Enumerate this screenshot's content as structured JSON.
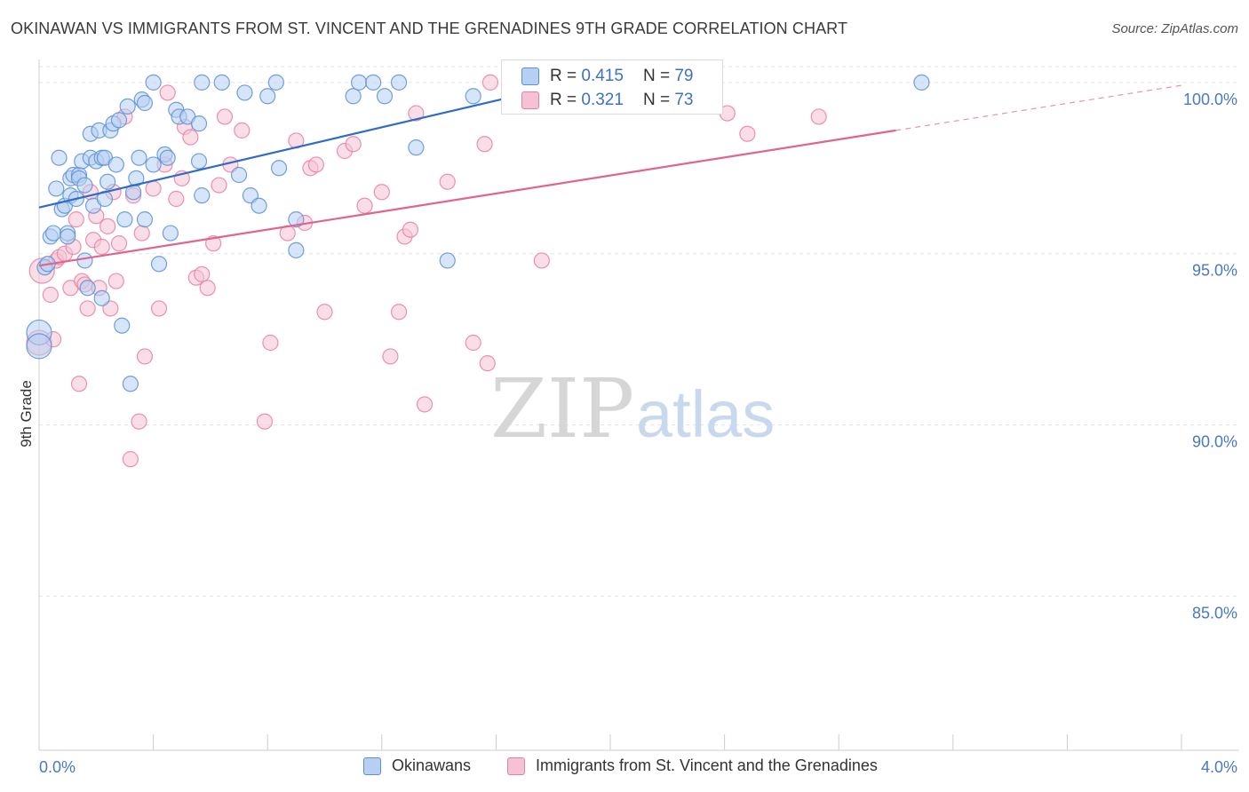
{
  "title": "OKINAWAN VS IMMIGRANTS FROM ST. VINCENT AND THE GRENADINES 9TH GRADE CORRELATION CHART",
  "source": "Source: ZipAtlas.com",
  "watermark": {
    "zip": "ZIP",
    "atlas": "atlas"
  },
  "colors": {
    "blue": "#5b8fd6",
    "blue_fill": "#b6cff2",
    "blue_line": "#2f6cc4",
    "pink": "#e97fa0",
    "pink_fill": "#f6c2d3",
    "pink_line": "#e0648c",
    "tick_label": "#4a78c2"
  },
  "legend": {
    "series": [
      {
        "name": "Okinawans",
        "r_label": "R =",
        "r_value": "0.415",
        "n_label": "N =",
        "n_value": "79"
      },
      {
        "name": "Immigrants from St. Vincent and the Grenadines",
        "r_label": "R =",
        "r_value": "0.321",
        "n_label": "N =",
        "n_value": "73"
      }
    ]
  },
  "chart_data": {
    "type": "scatter",
    "title": "OKINAWAN VS IMMIGRANTS FROM ST. VINCENT AND THE GRENADINES 9TH GRADE CORRELATION CHART",
    "xlabel": "",
    "ylabel": "9th Grade",
    "xlim": [
      0.0,
      4.0
    ],
    "ylim": [
      80.5,
      100.8
    ],
    "x_tick_labels": [
      {
        "value": 0.0,
        "label": "0.0%"
      },
      {
        "value": 4.0,
        "label": "4.0%"
      }
    ],
    "y_ticks": [
      {
        "value": 85.0,
        "label": "85.0%"
      },
      {
        "value": 90.0,
        "label": "90.0%"
      },
      {
        "value": 95.0,
        "label": "95.0%"
      },
      {
        "value": 100.0,
        "label": "100.0%"
      }
    ],
    "series": [
      {
        "name": "Okinawans",
        "color": "#5b8fd6",
        "trend": {
          "x0": 0.0,
          "y0": 96.35,
          "x1": 2.0,
          "y1": 100.25,
          "dashed_to_x": 2.0
        },
        "points": [
          [
            0.0,
            92.7
          ],
          [
            0.0,
            92.3
          ],
          [
            0.02,
            94.6
          ],
          [
            0.03,
            94.7
          ],
          [
            0.04,
            95.5
          ],
          [
            0.05,
            95.6
          ],
          [
            0.06,
            96.9
          ],
          [
            0.07,
            97.8
          ],
          [
            0.08,
            96.3
          ],
          [
            0.09,
            96.4
          ],
          [
            0.1,
            95.6
          ],
          [
            0.1,
            95.5
          ],
          [
            0.11,
            97.2
          ],
          [
            0.11,
            96.7
          ],
          [
            0.12,
            97.3
          ],
          [
            0.13,
            96.6
          ],
          [
            0.14,
            97.3
          ],
          [
            0.14,
            97.2
          ],
          [
            0.15,
            97.7
          ],
          [
            0.16,
            94.8
          ],
          [
            0.16,
            97.0
          ],
          [
            0.17,
            94.0
          ],
          [
            0.18,
            97.8
          ],
          [
            0.18,
            98.5
          ],
          [
            0.19,
            96.4
          ],
          [
            0.2,
            97.7
          ],
          [
            0.21,
            98.6
          ],
          [
            0.22,
            97.8
          ],
          [
            0.22,
            93.7
          ],
          [
            0.23,
            96.6
          ],
          [
            0.23,
            97.8
          ],
          [
            0.24,
            97.1
          ],
          [
            0.25,
            98.6
          ],
          [
            0.26,
            98.8
          ],
          [
            0.27,
            97.6
          ],
          [
            0.28,
            98.9
          ],
          [
            0.29,
            92.9
          ],
          [
            0.3,
            96.0
          ],
          [
            0.31,
            99.3
          ],
          [
            0.32,
            91.2
          ],
          [
            0.33,
            96.8
          ],
          [
            0.34,
            97.2
          ],
          [
            0.35,
            97.8
          ],
          [
            0.36,
            99.5
          ],
          [
            0.37,
            99.4
          ],
          [
            0.37,
            96.0
          ],
          [
            0.4,
            100.0
          ],
          [
            0.4,
            97.6
          ],
          [
            0.42,
            94.7
          ],
          [
            0.44,
            97.9
          ],
          [
            0.45,
            97.8
          ],
          [
            0.46,
            95.6
          ],
          [
            0.48,
            99.2
          ],
          [
            0.49,
            99.0
          ],
          [
            0.52,
            99.0
          ],
          [
            0.56,
            98.8
          ],
          [
            0.56,
            97.7
          ],
          [
            0.57,
            96.7
          ],
          [
            0.57,
            100.0
          ],
          [
            0.64,
            100.0
          ],
          [
            0.7,
            97.3
          ],
          [
            0.72,
            99.7
          ],
          [
            0.74,
            96.7
          ],
          [
            0.77,
            96.4
          ],
          [
            0.8,
            99.6
          ],
          [
            0.83,
            100.0
          ],
          [
            0.84,
            97.5
          ],
          [
            0.9,
            96.0
          ],
          [
            0.9,
            95.1
          ],
          [
            1.1,
            99.6
          ],
          [
            1.12,
            100.0
          ],
          [
            1.17,
            100.0
          ],
          [
            1.21,
            99.6
          ],
          [
            1.26,
            100.0
          ],
          [
            1.32,
            98.1
          ],
          [
            1.43,
            94.8
          ],
          [
            1.52,
            99.6
          ],
          [
            1.68,
            99.9
          ],
          [
            3.09,
            100.0
          ]
        ]
      },
      {
        "name": "Immigrants from St. Vincent and the Grenadines",
        "color": "#e97fa0",
        "trend": {
          "x0": 0.0,
          "y0": 94.65,
          "x1": 3.0,
          "y1": 98.6,
          "dashed_to_x": 4.0
        },
        "points": [
          [
            0.0,
            92.4
          ],
          [
            0.01,
            94.5
          ],
          [
            0.04,
            93.8
          ],
          [
            0.05,
            92.5
          ],
          [
            0.06,
            94.8
          ],
          [
            0.07,
            94.9
          ],
          [
            0.09,
            95.0
          ],
          [
            0.11,
            94.0
          ],
          [
            0.12,
            95.2
          ],
          [
            0.13,
            96.0
          ],
          [
            0.14,
            91.2
          ],
          [
            0.15,
            94.2
          ],
          [
            0.16,
            94.1
          ],
          [
            0.17,
            93.4
          ],
          [
            0.18,
            96.8
          ],
          [
            0.19,
            95.4
          ],
          [
            0.2,
            96.1
          ],
          [
            0.21,
            94.0
          ],
          [
            0.22,
            95.2
          ],
          [
            0.24,
            95.8
          ],
          [
            0.25,
            93.4
          ],
          [
            0.26,
            96.8
          ],
          [
            0.27,
            94.2
          ],
          [
            0.28,
            95.3
          ],
          [
            0.3,
            99.0
          ],
          [
            0.32,
            89.0
          ],
          [
            0.33,
            96.7
          ],
          [
            0.35,
            90.1
          ],
          [
            0.36,
            95.6
          ],
          [
            0.37,
            92.0
          ],
          [
            0.4,
            96.9
          ],
          [
            0.42,
            93.4
          ],
          [
            0.44,
            97.6
          ],
          [
            0.45,
            99.7
          ],
          [
            0.48,
            96.6
          ],
          [
            0.5,
            97.2
          ],
          [
            0.51,
            98.7
          ],
          [
            0.53,
            98.4
          ],
          [
            0.55,
            94.3
          ],
          [
            0.57,
            94.4
          ],
          [
            0.59,
            94.0
          ],
          [
            0.61,
            95.3
          ],
          [
            0.63,
            97.0
          ],
          [
            0.65,
            99.0
          ],
          [
            0.67,
            97.6
          ],
          [
            0.71,
            98.6
          ],
          [
            0.79,
            90.1
          ],
          [
            0.81,
            92.4
          ],
          [
            0.87,
            95.6
          ],
          [
            0.9,
            98.3
          ],
          [
            0.93,
            95.9
          ],
          [
            0.95,
            97.5
          ],
          [
            0.97,
            97.6
          ],
          [
            1.0,
            93.3
          ],
          [
            1.07,
            98.0
          ],
          [
            1.1,
            98.2
          ],
          [
            1.14,
            96.4
          ],
          [
            1.2,
            96.8
          ],
          [
            1.23,
            92.0
          ],
          [
            1.26,
            93.3
          ],
          [
            1.28,
            95.5
          ],
          [
            1.3,
            95.7
          ],
          [
            1.32,
            99.1
          ],
          [
            1.35,
            90.6
          ],
          [
            1.43,
            97.1
          ],
          [
            1.52,
            92.4
          ],
          [
            1.56,
            98.2
          ],
          [
            1.57,
            91.8
          ],
          [
            1.58,
            100.0
          ],
          [
            1.76,
            94.8
          ],
          [
            2.41,
            99.1
          ],
          [
            2.48,
            98.5
          ],
          [
            2.73,
            99.0
          ]
        ]
      }
    ]
  }
}
